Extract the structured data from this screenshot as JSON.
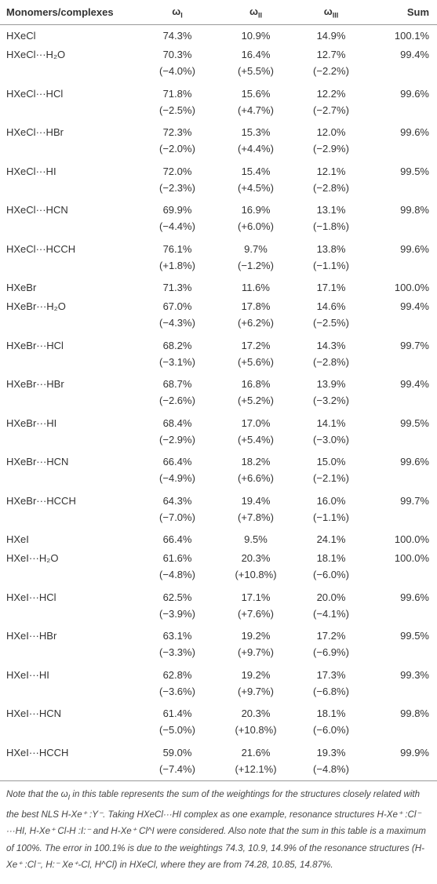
{
  "table": {
    "header": [
      {
        "text": "Monomers/complexes"
      },
      {
        "symbol": "ω",
        "sub": "I"
      },
      {
        "symbol": "ω",
        "sub": "II"
      },
      {
        "symbol": "ω",
        "sub": "III"
      },
      {
        "text": "Sum"
      }
    ],
    "rows": [
      {
        "name": "HXeCl",
        "values": [
          "74.3%",
          "10.9%",
          "14.9%",
          "100.1%"
        ]
      },
      {
        "name": "HXeCl···H₂O",
        "values": [
          "70.3%",
          "16.4%",
          "12.7%",
          "99.4%"
        ],
        "changes": [
          "(−4.0%)",
          "(+5.5%)",
          "(−2.2%)"
        ]
      },
      {
        "name": "HXeCl···HCl",
        "values": [
          "71.8%",
          "15.6%",
          "12.2%",
          "99.6%"
        ],
        "changes": [
          "(−2.5%)",
          "(+4.7%)",
          "(−2.7%)"
        ]
      },
      {
        "name": "HXeCl···HBr",
        "values": [
          "72.3%",
          "15.3%",
          "12.0%",
          "99.6%"
        ],
        "changes": [
          "(−2.0%)",
          "(+4.4%)",
          "(−2.9%)"
        ]
      },
      {
        "name": "HXeCl···HI",
        "values": [
          "72.0%",
          "15.4%",
          "12.1%",
          "99.5%"
        ],
        "changes": [
          "(−2.3%)",
          "(+4.5%)",
          "(−2.8%)"
        ]
      },
      {
        "name": "HXeCl···HCN",
        "values": [
          "69.9%",
          "16.9%",
          "13.1%",
          "99.8%"
        ],
        "changes": [
          "(−4.4%)",
          "(+6.0%)",
          "(−1.8%)"
        ]
      },
      {
        "name": "HXeCl···HCCH",
        "values": [
          "76.1%",
          "9.7%",
          "13.8%",
          "99.6%"
        ],
        "changes": [
          "(+1.8%)",
          "(−1.2%)",
          "(−1.1%)"
        ]
      },
      {
        "name": "HXeBr",
        "values": [
          "71.3%",
          "11.6%",
          "17.1%",
          "100.0%"
        ]
      },
      {
        "name": "HXeBr···H₂O",
        "values": [
          "67.0%",
          "17.8%",
          "14.6%",
          "99.4%"
        ],
        "changes": [
          "(−4.3%)",
          "(+6.2%)",
          "(−2.5%)"
        ]
      },
      {
        "name": "HXeBr···HCl",
        "values": [
          "68.2%",
          "17.2%",
          "14.3%",
          "99.7%"
        ],
        "changes": [
          "(−3.1%)",
          "(+5.6%)",
          "(−2.8%)"
        ]
      },
      {
        "name": "HXeBr···HBr",
        "values": [
          "68.7%",
          "16.8%",
          "13.9%",
          "99.4%"
        ],
        "changes": [
          "(−2.6%)",
          "(+5.2%)",
          "(−3.2%)"
        ]
      },
      {
        "name": "HXeBr···HI",
        "values": [
          "68.4%",
          "17.0%",
          "14.1%",
          "99.5%"
        ],
        "changes": [
          "(−2.9%)",
          "(+5.4%)",
          "(−3.0%)"
        ]
      },
      {
        "name": "HXeBr···HCN",
        "values": [
          "66.4%",
          "18.2%",
          "15.0%",
          "99.6%"
        ],
        "changes": [
          "(−4.9%)",
          "(+6.6%)",
          "(−2.1%)"
        ]
      },
      {
        "name": "HXeBr···HCCH",
        "values": [
          "64.3%",
          "19.4%",
          "16.0%",
          "99.7%"
        ],
        "changes": [
          "(−7.0%)",
          "(+7.8%)",
          "(−1.1%)"
        ]
      },
      {
        "name": "HXeI",
        "values": [
          "66.4%",
          "9.5%",
          "24.1%",
          "100.0%"
        ]
      },
      {
        "name": "HXeI···H₂O",
        "values": [
          "61.6%",
          "20.3%",
          "18.1%",
          "100.0%"
        ],
        "changes": [
          "(−4.8%)",
          "(+10.8%)",
          "(−6.0%)"
        ]
      },
      {
        "name": "HXeI···HCl",
        "values": [
          "62.5%",
          "17.1%",
          "20.0%",
          "99.6%"
        ],
        "changes": [
          "(−3.9%)",
          "(+7.6%)",
          "(−4.1%)"
        ]
      },
      {
        "name": "HXeI···HBr",
        "values": [
          "63.1%",
          "19.2%",
          "17.2%",
          "99.5%"
        ],
        "changes": [
          "(−3.3%)",
          "(+9.7%)",
          "(−6.9%)"
        ]
      },
      {
        "name": "HXeI···HI",
        "values": [
          "62.8%",
          "19.2%",
          "17.3%",
          "99.3%"
        ],
        "changes": [
          "(−3.6%)",
          "(+9.7%)",
          "(−6.8%)"
        ]
      },
      {
        "name": "HXeI···HCN",
        "values": [
          "61.4%",
          "20.3%",
          "18.1%",
          "99.8%"
        ],
        "changes": [
          "(−5.0%)",
          "(+10.8%)",
          "(−6.0%)"
        ]
      },
      {
        "name": "HXeI···HCCH",
        "values": [
          "59.0%",
          "21.6%",
          "19.3%",
          "99.9%"
        ],
        "changes": [
          "(−7.4%)",
          "(+12.1%)",
          "(−4.8%)"
        ]
      }
    ]
  },
  "note": [
    {
      "text": "Note that the ω"
    },
    {
      "sub": "I"
    },
    {
      "text": " in this table represents the sum of the weightings for the structures closely related with the best NLS H-Xe⁺ :Y⁻. Taking HXeCl···HI complex as one example, resonance structures H-Xe⁺ :Cl⁻ ···HI, H-Xe⁺ Cl-H :I:⁻ and H-Xe⁺ Cl^I were considered. Also note that the sum in this table is a maximum of 100%. The error in 100.1% is due to the weightings 74.3, 10.9, 14.9% of the resonance structures (H-Xe⁺ :Cl⁻, H:⁻ Xe⁺-Cl, H^Cl) in HXeCl, where they are from 74.28, 10.85, 14.87%."
    }
  ]
}
